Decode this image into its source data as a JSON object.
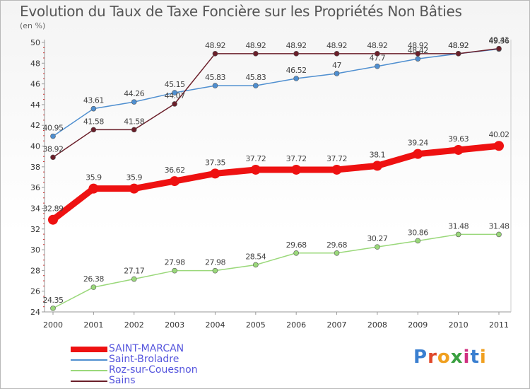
{
  "title": "Evolution du Taux de Taxe Foncière sur les Propriétés Non Bâties",
  "unit_label": "(en %)",
  "logo_text": "Proxiti",
  "colors": {
    "saint_marcan": "#ee1111",
    "saint_broladre": "#4f8fd0",
    "roz": "#9ad87a",
    "sains": "#6b1f2a",
    "axis": "#999999",
    "tick_text": "#333333"
  },
  "chart_data": {
    "type": "line",
    "title": "Evolution du Taux de Taxe Foncière sur les Propriétés Non Bâties",
    "ylabel": "(en %)",
    "xlabel": "",
    "x": [
      "2000",
      "2001",
      "2002",
      "2003",
      "2004",
      "2005",
      "2006",
      "2007",
      "2008",
      "2009",
      "2010",
      "2011"
    ],
    "ylim": [
      24,
      50
    ],
    "yticks": [
      24,
      26,
      28,
      30,
      32,
      34,
      36,
      38,
      40,
      42,
      44,
      46,
      48,
      50
    ],
    "grid": false,
    "legend_position": "bottom-left",
    "series": [
      {
        "name": "SAINT-MARCAN",
        "color": "#ee1111",
        "emphasis": true,
        "values": [
          32.89,
          35.9,
          35.9,
          36.62,
          37.35,
          37.72,
          37.72,
          37.72,
          38.1,
          39.24,
          39.63,
          40.02
        ],
        "labels": [
          "32.89",
          "35.9",
          "35.9",
          "36.62",
          "37.35",
          "37.72",
          "37.72",
          "37.72",
          "38.1",
          "39.24",
          "39.63",
          "40.02"
        ]
      },
      {
        "name": "Saint-Broladre",
        "color": "#4f8fd0",
        "emphasis": false,
        "values": [
          40.95,
          43.61,
          44.26,
          45.15,
          45.83,
          45.83,
          46.52,
          47.0,
          47.7,
          48.42,
          48.92,
          49.36
        ],
        "labels": [
          "40.95",
          "43.61",
          "44.26",
          "45.15",
          "45.83",
          "45.83",
          "46.52",
          "47",
          "47.7",
          "48.42",
          "48.92",
          "49.36"
        ]
      },
      {
        "name": "Roz-sur-Couesnon",
        "color": "#9ad87a",
        "emphasis": false,
        "values": [
          24.35,
          26.38,
          27.17,
          27.98,
          27.98,
          28.54,
          29.68,
          29.68,
          30.27,
          30.86,
          31.48,
          31.48
        ],
        "labels": [
          "24.35",
          "26.38",
          "27.17",
          "27.98",
          "27.98",
          "28.54",
          "29.68",
          "29.68",
          "30.27",
          "30.86",
          "31.48",
          "31.48"
        ]
      },
      {
        "name": "Sains",
        "color": "#6b1f2a",
        "emphasis": false,
        "values": [
          38.92,
          41.58,
          41.58,
          44.07,
          48.92,
          48.92,
          48.92,
          48.92,
          48.92,
          48.92,
          48.92,
          49.41
        ],
        "labels": [
          "38.92",
          "41.58",
          "41.58",
          "44.07",
          "48.92",
          "48.92",
          "48.92",
          "48.92",
          "48.92",
          "48.92",
          "48.92",
          "49.41"
        ]
      }
    ]
  }
}
